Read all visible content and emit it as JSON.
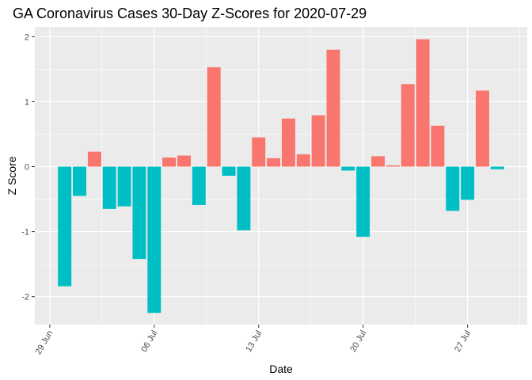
{
  "chart_data": {
    "type": "bar",
    "title": "GA Coronavirus Cases 30-Day Z-Scores for 2020-07-29",
    "xlabel": "Date",
    "ylabel": "Z Score",
    "x": [
      "2020-06-30",
      "2020-07-01",
      "2020-07-02",
      "2020-07-03",
      "2020-07-04",
      "2020-07-05",
      "2020-07-06",
      "2020-07-07",
      "2020-07-08",
      "2020-07-09",
      "2020-07-10",
      "2020-07-11",
      "2020-07-12",
      "2020-07-13",
      "2020-07-14",
      "2020-07-15",
      "2020-07-16",
      "2020-07-17",
      "2020-07-18",
      "2020-07-19",
      "2020-07-20",
      "2020-07-21",
      "2020-07-22",
      "2020-07-23",
      "2020-07-24",
      "2020-07-25",
      "2020-07-26",
      "2020-07-27",
      "2020-07-28",
      "2020-07-29"
    ],
    "values": [
      -1.84,
      -0.45,
      0.23,
      -0.65,
      -0.61,
      -1.42,
      -2.25,
      0.14,
      0.17,
      -0.59,
      1.53,
      -0.14,
      -0.98,
      0.45,
      0.13,
      0.74,
      0.19,
      0.79,
      1.8,
      -0.06,
      -1.08,
      0.16,
      0.02,
      1.27,
      1.96,
      0.63,
      -0.68,
      -0.51,
      1.17,
      -0.04
    ],
    "colors": {
      "positive": "#F8766D",
      "negative": "#00BFC4"
    },
    "x_range": [
      "2020-06-28",
      "2020-07-31"
    ],
    "ylim": [
      -2.43,
      2.15
    ],
    "y_ticks": [
      -2,
      -1,
      0,
      1,
      2
    ],
    "y_tick_labels": [
      "-2",
      "-1",
      "0",
      "1",
      "2"
    ],
    "x_ticks": [
      "2020-06-29",
      "2020-07-06",
      "2020-07-13",
      "2020-07-20",
      "2020-07-27"
    ],
    "x_tick_labels": [
      "29 Jun",
      "06 Jul",
      "13 Jul",
      "20 Jul",
      "27 Jul"
    ],
    "grid": true,
    "legend": "none"
  }
}
